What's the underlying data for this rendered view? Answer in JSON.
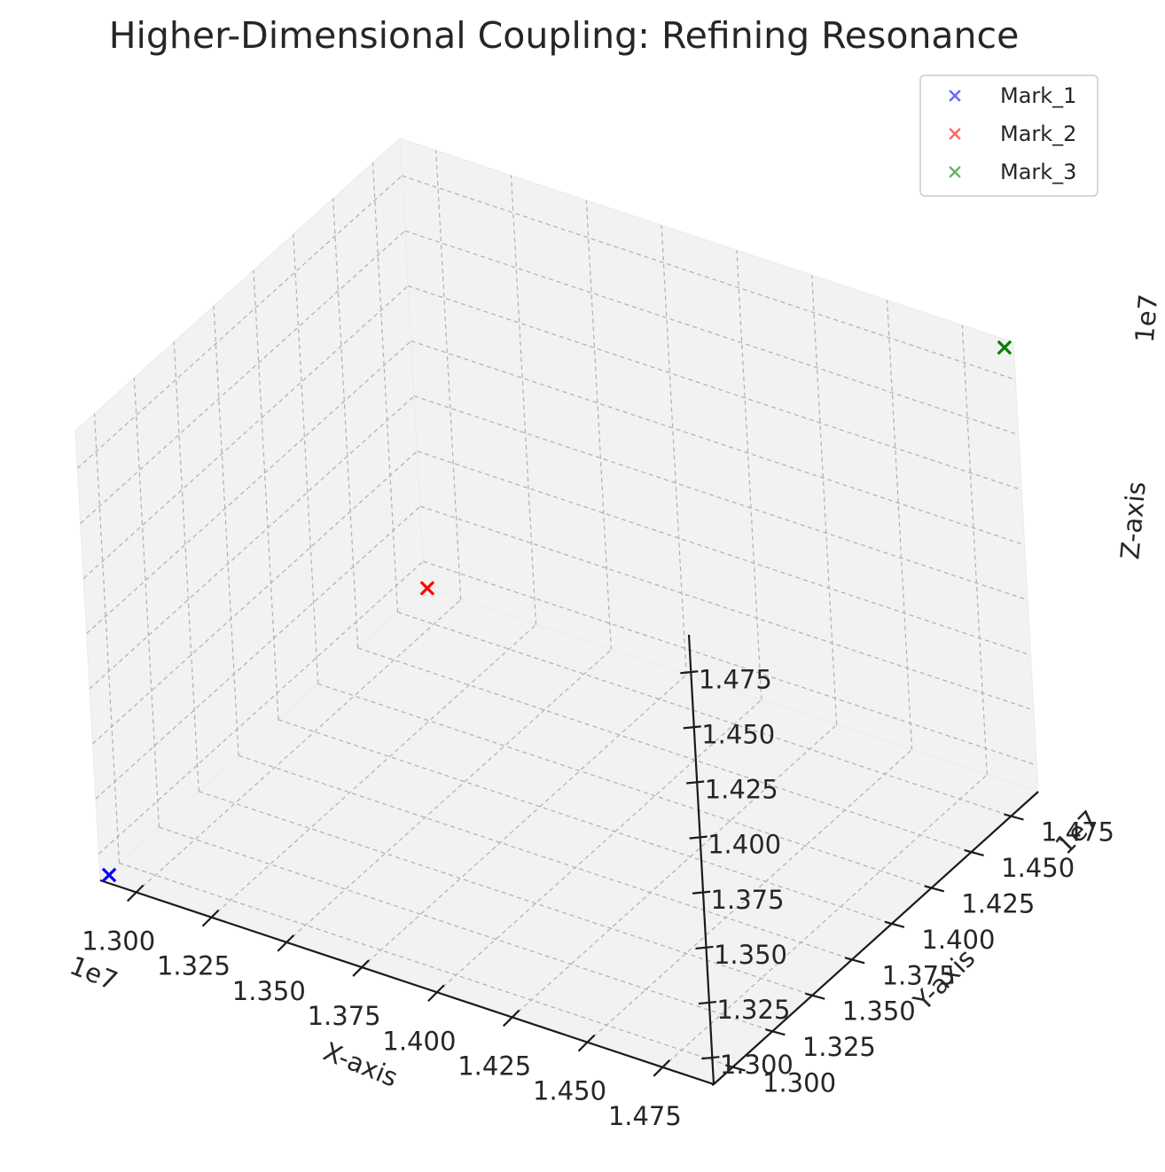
{
  "chart_data": {
    "type": "scatter",
    "title": "Higher-Dimensional Coupling: Refining Resonance",
    "xlabel": "X-axis",
    "ylabel": "Y-axis",
    "zlabel": "Z-axis",
    "xlim": [
      12880000,
      14920000
    ],
    "ylim": [
      12880000,
      14920000
    ],
    "zlim": [
      12880000,
      14920000
    ],
    "x_ticks": [
      "1.300",
      "1.325",
      "1.350",
      "1.375",
      "1.400",
      "1.425",
      "1.450",
      "1.475"
    ],
    "y_ticks": [
      "1.300",
      "1.325",
      "1.350",
      "1.375",
      "1.400",
      "1.425",
      "1.450",
      "1.475"
    ],
    "z_ticks": [
      "1.300",
      "1.325",
      "1.350",
      "1.375",
      "1.400",
      "1.425",
      "1.450",
      "1.475"
    ],
    "x_offset": "1e7",
    "y_offset": "1e7",
    "z_offset": "1e7",
    "grid": true,
    "legend_position": "top-right",
    "series": [
      {
        "name": "Mark_1",
        "color": "#0000ff",
        "marker": "x",
        "x": [
          12900000
        ],
        "y": [
          12900000
        ],
        "z": [
          12900000
        ]
      },
      {
        "name": "Mark_2",
        "color": "#ff0000",
        "marker": "x",
        "x": [
          12900000
        ],
        "y": [
          14900000
        ],
        "z": [
          12900000
        ]
      },
      {
        "name": "Mark_3",
        "color": "#008000",
        "marker": "x",
        "x": [
          14900000
        ],
        "y": [
          14900000
        ],
        "z": [
          14900000
        ]
      }
    ]
  }
}
